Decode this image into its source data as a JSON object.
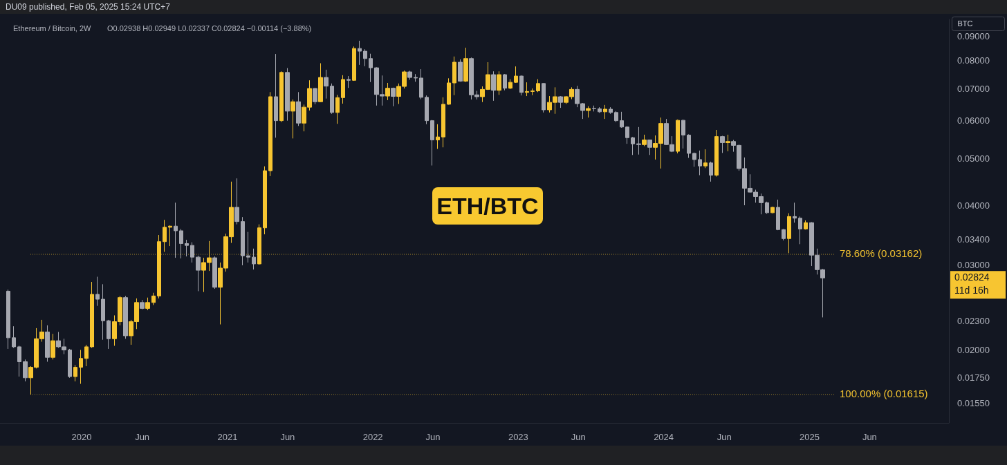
{
  "chart_data": {
    "type": "candlestick",
    "title": "Ethereum / Bitcoin, 2W",
    "subtitle": "O0.02938 H0.02949 L0.02337 C0.02824 −0.00114 (−3.88%)",
    "annotations": [
      "DU09 published, Feb 05, 2025 15:24 UTC+7",
      "BTC",
      "ETH/BTC",
      "0.02824",
      "11d 16h"
    ],
    "log": "y",
    "xlim": [
      "2019-06-10",
      "2025-12-17"
    ],
    "xticks": [
      {
        "value": "2020-01-01",
        "label": "2020"
      },
      {
        "value": "2020-06-01",
        "label": "Jun"
      },
      {
        "value": "2021-01-01",
        "label": "2021"
      },
      {
        "value": "2021-06-01",
        "label": "Jun"
      },
      {
        "value": "2022-01-01",
        "label": "2022"
      },
      {
        "value": "2022-06-01",
        "label": "Jun"
      },
      {
        "value": "2023-01-01",
        "label": "2023"
      },
      {
        "value": "2023-06-01",
        "label": "Jun"
      },
      {
        "value": "2024-01-01",
        "label": "2024"
      },
      {
        "value": "2024-06-01",
        "label": "Jun"
      },
      {
        "value": "2025-01-01",
        "label": "2025"
      },
      {
        "value": "2025-06-01",
        "label": "Jun"
      }
    ],
    "ylim": [
      0.0141,
      0.0975
    ],
    "yticks": [
      {
        "value": 0.09,
        "label": "0.09000"
      },
      {
        "value": 0.08,
        "label": "0.08000"
      },
      {
        "value": 0.07,
        "label": "0.07000"
      },
      {
        "value": 0.06,
        "label": "0.06000"
      },
      {
        "value": 0.05,
        "label": "0.05000"
      },
      {
        "value": 0.04,
        "label": "0.04000"
      },
      {
        "value": 0.034,
        "label": "0.03400"
      },
      {
        "value": 0.03,
        "label": "0.03000"
      },
      {
        "value": 0.023,
        "label": "0.02300"
      },
      {
        "value": 0.02,
        "label": "0.02000"
      },
      {
        "value": 0.0175,
        "label": "0.01750"
      },
      {
        "value": 0.0155,
        "label": "0.01550"
      }
    ],
    "ref_lines": [
      {
        "axis": "y",
        "value": 0.03162,
        "label": "78.60% (0.03162)",
        "color": "#f2c230",
        "line_style": "dotted"
      },
      {
        "axis": "y",
        "value": 0.01615,
        "label": "100.00% (0.01615)",
        "color": "#f2c230",
        "line_style": "dotted"
      }
    ],
    "x": [
      "2019-07-01",
      "2019-07-15",
      "2019-07-29",
      "2019-08-12",
      "2019-08-26",
      "2019-09-09",
      "2019-09-23",
      "2019-10-07",
      "2019-10-21",
      "2019-11-04",
      "2019-11-18",
      "2019-12-02",
      "2019-12-16",
      "2019-12-30",
      "2020-01-13",
      "2020-01-27",
      "2020-02-10",
      "2020-02-24",
      "2020-03-09",
      "2020-03-23",
      "2020-04-06",
      "2020-04-20",
      "2020-05-04",
      "2020-05-18",
      "2020-06-01",
      "2020-06-15",
      "2020-06-29",
      "2020-07-13",
      "2020-07-27",
      "2020-08-10",
      "2020-08-24",
      "2020-09-07",
      "2020-09-21",
      "2020-10-05",
      "2020-10-19",
      "2020-11-02",
      "2020-11-16",
      "2020-11-30",
      "2020-12-14",
      "2020-12-28",
      "2021-01-11",
      "2021-01-25",
      "2021-02-08",
      "2021-02-22",
      "2021-03-08",
      "2021-03-22",
      "2021-04-05",
      "2021-04-19",
      "2021-05-03",
      "2021-05-17",
      "2021-05-31",
      "2021-06-14",
      "2021-06-28",
      "2021-07-12",
      "2021-07-26",
      "2021-08-09",
      "2021-08-23",
      "2021-09-06",
      "2021-09-20",
      "2021-10-04",
      "2021-10-18",
      "2021-11-01",
      "2021-11-15",
      "2021-11-29",
      "2021-12-13",
      "2021-12-27",
      "2022-01-10",
      "2022-01-24",
      "2022-02-07",
      "2022-02-21",
      "2022-03-07",
      "2022-03-21",
      "2022-04-04",
      "2022-04-18",
      "2022-05-02",
      "2022-05-16",
      "2022-05-30",
      "2022-06-13",
      "2022-06-27",
      "2022-07-11",
      "2022-07-25",
      "2022-08-08",
      "2022-08-22",
      "2022-09-05",
      "2022-09-19",
      "2022-10-03",
      "2022-10-17",
      "2022-10-31",
      "2022-11-14",
      "2022-11-28",
      "2022-12-12",
      "2022-12-26",
      "2023-01-09",
      "2023-01-23",
      "2023-02-06",
      "2023-02-20",
      "2023-03-06",
      "2023-03-20",
      "2023-04-03",
      "2023-04-17",
      "2023-05-01",
      "2023-05-15",
      "2023-05-29",
      "2023-06-12",
      "2023-06-26",
      "2023-07-10",
      "2023-07-24",
      "2023-08-07",
      "2023-08-21",
      "2023-09-04",
      "2023-09-18",
      "2023-10-02",
      "2023-10-16",
      "2023-10-30",
      "2023-11-13",
      "2023-11-27",
      "2023-12-11",
      "2023-12-25",
      "2024-01-08",
      "2024-01-22",
      "2024-02-05",
      "2024-02-19",
      "2024-03-04",
      "2024-03-18",
      "2024-04-01",
      "2024-04-15",
      "2024-04-29",
      "2024-05-13",
      "2024-05-27",
      "2024-06-10",
      "2024-06-24",
      "2024-07-08",
      "2024-07-22",
      "2024-08-05",
      "2024-08-19",
      "2024-09-02",
      "2024-09-16",
      "2024-09-30",
      "2024-10-14",
      "2024-10-28",
      "2024-11-11",
      "2024-11-25",
      "2024-12-09",
      "2024-12-23",
      "2025-01-06",
      "2025-01-20",
      "2025-02-03"
    ],
    "ohlc": [
      [
        0.0265,
        0.0267,
        0.0201,
        0.0212
      ],
      [
        0.0212,
        0.0224,
        0.0202,
        0.0203
      ],
      [
        0.0203,
        0.0204,
        0.0176,
        0.0189
      ],
      [
        0.0189,
        0.0191,
        0.0172,
        0.0175
      ],
      [
        0.0175,
        0.0185,
        0.01615,
        0.0184
      ],
      [
        0.0184,
        0.0222,
        0.0183,
        0.0211
      ],
      [
        0.0211,
        0.0231,
        0.0208,
        0.0218
      ],
      [
        0.0218,
        0.0225,
        0.0189,
        0.0193
      ],
      [
        0.0193,
        0.0216,
        0.0191,
        0.0209
      ],
      [
        0.0209,
        0.0218,
        0.0202,
        0.0203
      ],
      [
        0.0203,
        0.0211,
        0.0196,
        0.02
      ],
      [
        0.02,
        0.0201,
        0.0175,
        0.0176
      ],
      [
        0.0176,
        0.0186,
        0.0172,
        0.0184
      ],
      [
        0.0184,
        0.02,
        0.017,
        0.0192
      ],
      [
        0.0192,
        0.0205,
        0.0185,
        0.0203
      ],
      [
        0.0203,
        0.0277,
        0.0202,
        0.0261
      ],
      [
        0.0261,
        0.0284,
        0.0247,
        0.0255
      ],
      [
        0.0255,
        0.0274,
        0.021,
        0.023
      ],
      [
        0.023,
        0.0231,
        0.0201,
        0.0211
      ],
      [
        0.0211,
        0.0236,
        0.0204,
        0.0229
      ],
      [
        0.0229,
        0.0259,
        0.0225,
        0.0257
      ],
      [
        0.0257,
        0.0259,
        0.0211,
        0.0214
      ],
      [
        0.0214,
        0.0231,
        0.0205,
        0.0229
      ],
      [
        0.0229,
        0.0256,
        0.0221,
        0.0251
      ],
      [
        0.0251,
        0.0254,
        0.0243,
        0.0244
      ],
      [
        0.0244,
        0.0257,
        0.0242,
        0.0251
      ],
      [
        0.0251,
        0.0263,
        0.0248,
        0.0259
      ],
      [
        0.0259,
        0.0347,
        0.0256,
        0.0336
      ],
      [
        0.0336,
        0.0373,
        0.032,
        0.036
      ],
      [
        0.036,
        0.0363,
        0.0329,
        0.0362
      ],
      [
        0.0362,
        0.0405,
        0.0311,
        0.0354
      ],
      [
        0.0354,
        0.0357,
        0.031,
        0.0333
      ],
      [
        0.0333,
        0.0339,
        0.0313,
        0.033
      ],
      [
        0.033,
        0.0335,
        0.0304,
        0.0312
      ],
      [
        0.0312,
        0.0314,
        0.0265,
        0.0293
      ],
      [
        0.0293,
        0.0311,
        0.0264,
        0.0304
      ],
      [
        0.0304,
        0.0337,
        0.0292,
        0.0311
      ],
      [
        0.0311,
        0.0313,
        0.0268,
        0.027
      ],
      [
        0.027,
        0.0304,
        0.0226,
        0.0296
      ],
      [
        0.0296,
        0.0349,
        0.0291,
        0.0344
      ],
      [
        0.0344,
        0.0448,
        0.0334,
        0.0396
      ],
      [
        0.0396,
        0.0455,
        0.0365,
        0.037
      ],
      [
        0.037,
        0.0378,
        0.03,
        0.0314
      ],
      [
        0.0314,
        0.0352,
        0.0304,
        0.0312
      ],
      [
        0.0312,
        0.0325,
        0.0294,
        0.0302
      ],
      [
        0.0302,
        0.0365,
        0.0301,
        0.0359
      ],
      [
        0.0359,
        0.0482,
        0.0348,
        0.0472
      ],
      [
        0.0472,
        0.0688,
        0.046,
        0.0673
      ],
      [
        0.0673,
        0.0826,
        0.0553,
        0.06
      ],
      [
        0.06,
        0.076,
        0.0596,
        0.0756
      ],
      [
        0.0756,
        0.0772,
        0.06,
        0.0628
      ],
      [
        0.0628,
        0.0664,
        0.0551,
        0.0657
      ],
      [
        0.0657,
        0.0688,
        0.0585,
        0.0593
      ],
      [
        0.0593,
        0.0648,
        0.057,
        0.064
      ],
      [
        0.064,
        0.0728,
        0.063,
        0.07
      ],
      [
        0.07,
        0.0702,
        0.0649,
        0.0657
      ],
      [
        0.0657,
        0.079,
        0.0656,
        0.0738
      ],
      [
        0.0738,
        0.0766,
        0.0667,
        0.0708
      ],
      [
        0.0708,
        0.0717,
        0.062,
        0.0624
      ],
      [
        0.0624,
        0.0679,
        0.0591,
        0.067
      ],
      [
        0.067,
        0.0746,
        0.0651,
        0.0731
      ],
      [
        0.0731,
        0.0743,
        0.0702,
        0.0728
      ],
      [
        0.0728,
        0.0856,
        0.0726,
        0.0848
      ],
      [
        0.0848,
        0.088,
        0.0784,
        0.0837
      ],
      [
        0.0837,
        0.0845,
        0.0779,
        0.0808
      ],
      [
        0.0808,
        0.0827,
        0.0722,
        0.0773
      ],
      [
        0.0773,
        0.0775,
        0.0645,
        0.068
      ],
      [
        0.068,
        0.0745,
        0.0645,
        0.0675
      ],
      [
        0.0675,
        0.0719,
        0.0662,
        0.0701
      ],
      [
        0.0701,
        0.0703,
        0.0643,
        0.0674
      ],
      [
        0.0674,
        0.0717,
        0.065,
        0.0707
      ],
      [
        0.0707,
        0.0763,
        0.07,
        0.0758
      ],
      [
        0.0758,
        0.0762,
        0.073,
        0.0738
      ],
      [
        0.0738,
        0.075,
        0.0723,
        0.0736
      ],
      [
        0.0736,
        0.0768,
        0.0665,
        0.0671
      ],
      [
        0.0671,
        0.0677,
        0.059,
        0.06
      ],
      [
        0.06,
        0.0602,
        0.0484,
        0.0547
      ],
      [
        0.0547,
        0.059,
        0.0524,
        0.0555
      ],
      [
        0.0555,
        0.0671,
        0.0528,
        0.0649
      ],
      [
        0.0649,
        0.0735,
        0.0648,
        0.0719
      ],
      [
        0.0719,
        0.0816,
        0.0678,
        0.0794
      ],
      [
        0.0794,
        0.0805,
        0.0723,
        0.0725
      ],
      [
        0.0725,
        0.0851,
        0.0722,
        0.0808
      ],
      [
        0.0808,
        0.0812,
        0.0664,
        0.0679
      ],
      [
        0.0679,
        0.0692,
        0.0664,
        0.0673
      ],
      [
        0.0673,
        0.0707,
        0.0656,
        0.0697
      ],
      [
        0.0697,
        0.0794,
        0.0695,
        0.0748
      ],
      [
        0.0748,
        0.076,
        0.066,
        0.0694
      ],
      [
        0.0694,
        0.076,
        0.0679,
        0.0748
      ],
      [
        0.0748,
        0.075,
        0.0694,
        0.0701
      ],
      [
        0.0701,
        0.0732,
        0.0698,
        0.0721
      ],
      [
        0.0721,
        0.0778,
        0.0719,
        0.0743
      ],
      [
        0.0743,
        0.0745,
        0.0677,
        0.0687
      ],
      [
        0.0687,
        0.0721,
        0.0675,
        0.069
      ],
      [
        0.069,
        0.07,
        0.0678,
        0.0692
      ],
      [
        0.0692,
        0.0732,
        0.0688,
        0.0717
      ],
      [
        0.0717,
        0.0718,
        0.0624,
        0.0632
      ],
      [
        0.0632,
        0.0675,
        0.0624,
        0.0655
      ],
      [
        0.0655,
        0.0704,
        0.062,
        0.0673
      ],
      [
        0.0673,
        0.0675,
        0.0638,
        0.0655
      ],
      [
        0.0655,
        0.0675,
        0.065,
        0.0673
      ],
      [
        0.0673,
        0.0704,
        0.0665,
        0.0697
      ],
      [
        0.0697,
        0.0709,
        0.064,
        0.0651
      ],
      [
        0.0651,
        0.0653,
        0.0605,
        0.063
      ],
      [
        0.063,
        0.0643,
        0.0609,
        0.0636
      ],
      [
        0.0636,
        0.0645,
        0.0627,
        0.0635
      ],
      [
        0.0635,
        0.064,
        0.0623,
        0.0626
      ],
      [
        0.0626,
        0.0647,
        0.0605,
        0.0634
      ],
      [
        0.0634,
        0.064,
        0.062,
        0.0624
      ],
      [
        0.0624,
        0.0628,
        0.0596,
        0.06
      ],
      [
        0.06,
        0.0626,
        0.058,
        0.0582
      ],
      [
        0.0582,
        0.0584,
        0.0537,
        0.0553
      ],
      [
        0.0553,
        0.0555,
        0.0509,
        0.0537
      ],
      [
        0.0537,
        0.0582,
        0.051,
        0.0535
      ],
      [
        0.0535,
        0.0561,
        0.0531,
        0.0547
      ],
      [
        0.0547,
        0.0548,
        0.0509,
        0.0528
      ],
      [
        0.0528,
        0.0559,
        0.0498,
        0.0538
      ],
      [
        0.0538,
        0.0609,
        0.0477,
        0.0592
      ],
      [
        0.0592,
        0.0605,
        0.0534,
        0.0535
      ],
      [
        0.0535,
        0.0557,
        0.0516,
        0.0518
      ],
      [
        0.0518,
        0.0603,
        0.0513,
        0.0601
      ],
      [
        0.0601,
        0.0603,
        0.0525,
        0.056
      ],
      [
        0.056,
        0.0562,
        0.0502,
        0.0513
      ],
      [
        0.0513,
        0.0515,
        0.0481,
        0.0498
      ],
      [
        0.0498,
        0.052,
        0.0462,
        0.0483
      ],
      [
        0.0483,
        0.0523,
        0.0478,
        0.049
      ],
      [
        0.049,
        0.0493,
        0.0448,
        0.0462
      ],
      [
        0.0462,
        0.0574,
        0.0459,
        0.0556
      ],
      [
        0.0556,
        0.0558,
        0.0514,
        0.054
      ],
      [
        0.054,
        0.0561,
        0.0518,
        0.0543
      ],
      [
        0.0543,
        0.0547,
        0.0517,
        0.0533
      ],
      [
        0.0533,
        0.0535,
        0.0472,
        0.0477
      ],
      [
        0.0477,
        0.0503,
        0.04,
        0.0434
      ],
      [
        0.0434,
        0.0464,
        0.0425,
        0.0426
      ],
      [
        0.0426,
        0.0431,
        0.0405,
        0.0417
      ],
      [
        0.0417,
        0.0423,
        0.0383,
        0.0405
      ],
      [
        0.0405,
        0.0407,
        0.0384,
        0.0386
      ],
      [
        0.0386,
        0.0397,
        0.0385,
        0.0396
      ],
      [
        0.0396,
        0.0411,
        0.0355,
        0.0356
      ],
      [
        0.0356,
        0.0357,
        0.0338,
        0.0341
      ],
      [
        0.0341,
        0.0385,
        0.0318,
        0.0379
      ],
      [
        0.0379,
        0.0405,
        0.0368,
        0.0376
      ],
      [
        0.0376,
        0.0379,
        0.0332,
        0.0357
      ],
      [
        0.0357,
        0.0372,
        0.0356,
        0.0368
      ],
      [
        0.0368,
        0.0369,
        0.0299,
        0.0315
      ],
      [
        0.0315,
        0.0325,
        0.0287,
        0.02938
      ],
      [
        0.02938,
        0.02949,
        0.02337,
        0.02824
      ]
    ],
    "colors": [
      "#a6a8b0",
      "#a6a8b0",
      "#a6a8b0",
      "#a6a8b0",
      "#f7c531",
      "#f7c531",
      "#f7c531",
      "#a6a8b0",
      "#f7c531",
      "#a6a8b0",
      "#a6a8b0",
      "#a6a8b0",
      "#f7c531",
      "#f7c531",
      "#f7c531",
      "#f7c531",
      "#a6a8b0",
      "#a6a8b0",
      "#a6a8b0",
      "#f7c531",
      "#f7c531",
      "#a6a8b0",
      "#f7c531",
      "#f7c531",
      "#a6a8b0",
      "#f7c531",
      "#f7c531",
      "#f7c531",
      "#f7c531",
      "#f7c531",
      "#a6a8b0",
      "#a6a8b0",
      "#a6a8b0",
      "#a6a8b0",
      "#a6a8b0",
      "#f7c531",
      "#f7c531",
      "#a6a8b0",
      "#f7c531",
      "#f7c531",
      "#f7c531",
      "#a6a8b0",
      "#a6a8b0",
      "#a6a8b0",
      "#a6a8b0",
      "#f7c531",
      "#f7c531",
      "#f7c531",
      "#a6a8b0",
      "#f7c531",
      "#a6a8b0",
      "#f7c531",
      "#a6a8b0",
      "#f7c531",
      "#f7c531",
      "#a6a8b0",
      "#f7c531",
      "#a6a8b0",
      "#a6a8b0",
      "#f7c531",
      "#f7c531",
      "#a6a8b0",
      "#f7c531",
      "#a6a8b0",
      "#a6a8b0",
      "#a6a8b0",
      "#a6a8b0",
      "#a6a8b0",
      "#f7c531",
      "#a6a8b0",
      "#f7c531",
      "#f7c531",
      "#a6a8b0",
      "#a6a8b0",
      "#a6a8b0",
      "#a6a8b0",
      "#a6a8b0",
      "#f7c531",
      "#f7c531",
      "#f7c531",
      "#f7c531",
      "#a6a8b0",
      "#f7c531",
      "#a6a8b0",
      "#a6a8b0",
      "#f7c531",
      "#f7c531",
      "#a6a8b0",
      "#f7c531",
      "#a6a8b0",
      "#f7c531",
      "#f7c531",
      "#a6a8b0",
      "#f7c531",
      "#f7c531",
      "#f7c531",
      "#a6a8b0",
      "#f7c531",
      "#f7c531",
      "#a6a8b0",
      "#f7c531",
      "#f7c531",
      "#a6a8b0",
      "#a6a8b0",
      "#f7c531",
      "#a6a8b0",
      "#a6a8b0",
      "#f7c531",
      "#a6a8b0",
      "#a6a8b0",
      "#a6a8b0",
      "#a6a8b0",
      "#a6a8b0",
      "#a6a8b0",
      "#f7c531",
      "#a6a8b0",
      "#f7c531",
      "#f7c531",
      "#a6a8b0",
      "#a6a8b0",
      "#f7c531",
      "#a6a8b0",
      "#a6a8b0",
      "#a6a8b0",
      "#a6a8b0",
      "#f7c531",
      "#a6a8b0",
      "#f7c531",
      "#a6a8b0",
      "#f7c531",
      "#a6a8b0",
      "#a6a8b0",
      "#a6a8b0",
      "#a6a8b0",
      "#a6a8b0",
      "#a6a8b0",
      "#a6a8b0",
      "#f7c531",
      "#a6a8b0",
      "#a6a8b0",
      "#f7c531",
      "#a6a8b0",
      "#a6a8b0",
      "#f7c531",
      "#a6a8b0",
      "#a6a8b0",
      "#a6a8b0"
    ]
  }
}
